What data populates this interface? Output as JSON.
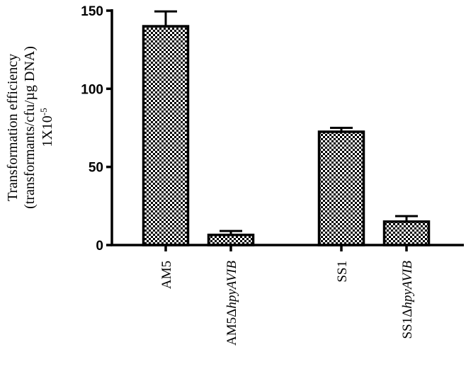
{
  "chart_data": {
    "type": "bar",
    "categories": [
      {
        "main": "AM5",
        "italic": "",
        "sep": ""
      },
      {
        "main": "AM5Δ",
        "italic": "hpyAVIB",
        "sep": ""
      },
      {
        "main": "SS1",
        "italic": "",
        "sep": ""
      },
      {
        "main": "SS1Δ",
        "italic": "hpyAVIB",
        "sep": ""
      }
    ],
    "values": [
      140,
      6.5,
      72.5,
      15
    ],
    "errors": [
      9.5,
      2.5,
      2.5,
      3.5
    ],
    "ylim": [
      0,
      150
    ],
    "yticks": [
      0,
      50,
      100,
      150
    ],
    "ylabel_lines": [
      "Transformation efficiency",
      "(transformants/cfu/µg DNA)"
    ],
    "ylabel_unit_base": "1X10",
    "ylabel_unit_exp": "-5",
    "bar_pattern": "checkerboard",
    "grid": false
  }
}
